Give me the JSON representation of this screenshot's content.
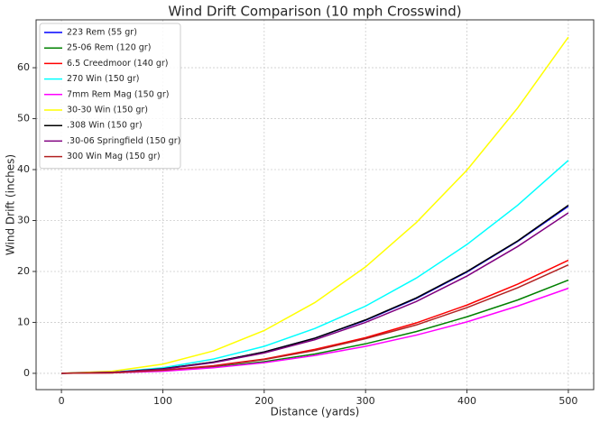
{
  "chart_data": {
    "type": "line",
    "title": "Wind Drift Comparison (10 mph Crosswind)",
    "x_label": "Distance (yards)",
    "y_label": "Wind Drift (inches)",
    "x": [
      0,
      50,
      100,
      150,
      200,
      250,
      300,
      350,
      400,
      450,
      500
    ],
    "series": [
      {
        "name": "223 Rem (55 gr)",
        "color": "#0000ff",
        "values": [
          0,
          0.2,
          0.9,
          2.2,
          4.2,
          6.9,
          10.4,
          14.7,
          19.9,
          25.9,
          32.8
        ]
      },
      {
        "name": "25-06 Rem (120 gr)",
        "color": "#008000",
        "values": [
          0,
          0.1,
          0.5,
          1.2,
          2.3,
          3.8,
          5.8,
          8.2,
          11.1,
          14.4,
          18.3
        ]
      },
      {
        "name": "6.5 Creedmoor (140 gr)",
        "color": "#ff0000",
        "values": [
          0,
          0.1,
          0.6,
          1.5,
          2.8,
          4.7,
          7.0,
          9.9,
          13.4,
          17.5,
          22.2
        ]
      },
      {
        "name": "270 Win (150 gr)",
        "color": "#00ffff",
        "values": [
          0,
          0.2,
          1.1,
          2.8,
          5.3,
          8.8,
          13.2,
          18.7,
          25.3,
          33.0,
          41.8
        ]
      },
      {
        "name": "7mm Rem Mag (150 gr)",
        "color": "#ff00ff",
        "values": [
          0,
          0.1,
          0.4,
          1.1,
          2.1,
          3.5,
          5.3,
          7.5,
          10.1,
          13.2,
          16.7
        ]
      },
      {
        "name": "30-30 Win (150 gr)",
        "color": "#ffff00",
        "values": [
          0,
          0.4,
          1.8,
          4.4,
          8.4,
          13.9,
          20.9,
          29.6,
          39.9,
          52.1,
          66.0
        ]
      },
      {
        "name": ".308 Win (150 gr)",
        "color": "#000000",
        "values": [
          0,
          0.2,
          0.9,
          2.2,
          4.2,
          6.9,
          10.5,
          14.8,
          20.0,
          26.0,
          33.0
        ]
      },
      {
        "name": ".30-06 Springfield (150 gr)",
        "color": "#800080",
        "values": [
          0,
          0.2,
          0.8,
          2.1,
          4.0,
          6.6,
          10.0,
          14.1,
          19.1,
          24.9,
          31.5
        ]
      },
      {
        "name": "300 Win Mag (150 gr)",
        "color": "#b22222",
        "values": [
          0,
          0.1,
          0.6,
          1.4,
          2.7,
          4.5,
          6.8,
          9.5,
          12.9,
          16.8,
          21.3
        ]
      }
    ],
    "xlim": [
      -25,
      525
    ],
    "ylim": [
      -3.2,
      69.4
    ],
    "xticks": [
      0,
      100,
      200,
      300,
      400,
      500
    ],
    "yticks": [
      0,
      10,
      20,
      30,
      40,
      50,
      60
    ],
    "grid": true,
    "legend": "upper-left"
  }
}
